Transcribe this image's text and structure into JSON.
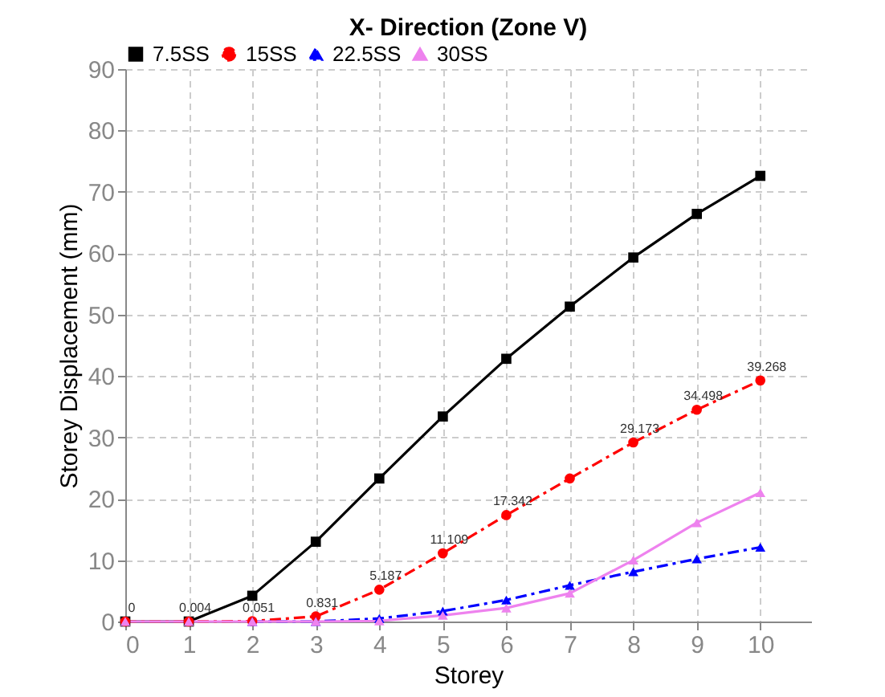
{
  "chart_data": {
    "type": "line",
    "title": "X- Direction (Zone V)",
    "xlabel": "Storey",
    "ylabel": "Storey Displacement (mm)",
    "x": [
      0,
      1,
      2,
      3,
      4,
      5,
      6,
      7,
      8,
      9,
      10
    ],
    "xlim": [
      0,
      10.8
    ],
    "xticks": [
      0,
      1,
      2,
      3,
      4,
      5,
      6,
      7,
      8,
      9,
      10
    ],
    "ylim": [
      0,
      90
    ],
    "yticks": [
      0,
      10,
      20,
      30,
      40,
      50,
      60,
      70,
      80,
      90
    ],
    "grid": true,
    "legend": "top",
    "series": [
      {
        "name": "7.5SS",
        "color": "#000000",
        "marker": "square",
        "line_style": "solid",
        "values": [
          0,
          0,
          4.2,
          13.0,
          23.3,
          33.4,
          42.8,
          51.3,
          59.3,
          66.4,
          72.6
        ]
      },
      {
        "name": "15SS",
        "color": "#ff0000",
        "marker": "circle",
        "line_style": "dashed",
        "values": [
          0,
          0.004,
          0.051,
          0.831,
          5.187,
          11.109,
          17.342,
          23.3,
          29.173,
          34.498,
          39.268
        ],
        "value_labels": [
          "0",
          "0.004",
          "0.051",
          "0.831",
          "5.187",
          "11.109",
          "17.342",
          null,
          "29.173",
          "34.498",
          "39.268"
        ]
      },
      {
        "name": "22.5SS",
        "color": "#0000ff",
        "marker": "triangle",
        "line_style": "dashed",
        "values": [
          null,
          null,
          0,
          0,
          0.5,
          1.7,
          3.5,
          5.9,
          8.1,
          10.2,
          12.1
        ]
      },
      {
        "name": "30SS",
        "color": "#ee82ee",
        "marker": "triangle",
        "line_style": "solid",
        "values": [
          0,
          0,
          0,
          0,
          0.1,
          1.0,
          2.2,
          4.6,
          10.0,
          16.1,
          21.0
        ]
      }
    ]
  }
}
